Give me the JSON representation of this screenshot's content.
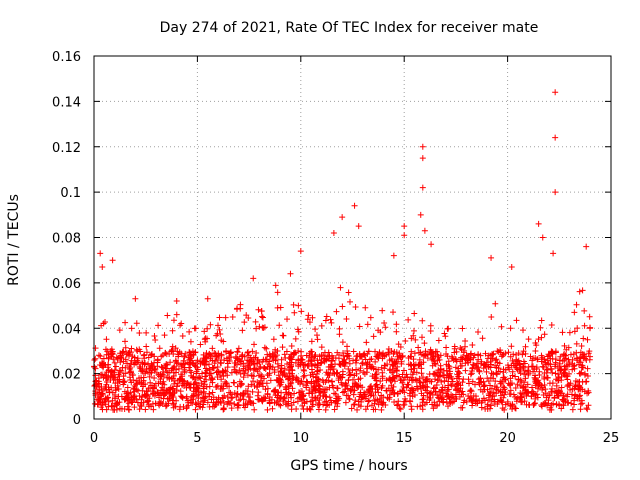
{
  "chart_data": {
    "type": "scatter",
    "title": "Day 274 of 2021, Rate Of TEC Index for receiver mate",
    "xlabel": "GPS time / hours",
    "ylabel": "ROTI / TECUs",
    "xlim": [
      0,
      25
    ],
    "ylim": [
      0,
      0.16
    ],
    "x_ticks": [
      0,
      5,
      10,
      15,
      20,
      25
    ],
    "x_tick_labels": [
      "0",
      "5",
      "10",
      "15",
      "20",
      "25"
    ],
    "y_ticks": [
      0,
      0.02,
      0.04,
      0.06,
      0.08,
      0.1,
      0.12,
      0.14,
      0.16
    ],
    "y_tick_labels": [
      "0",
      "0.02",
      "0.04",
      "0.06",
      "0.08",
      "0.1",
      "0.12",
      "0.14",
      "0.16"
    ],
    "grid": true,
    "marker": "+",
    "color": "#ff0000",
    "series": [
      {
        "name": "ROTI",
        "envelope_hours": [
          0,
          0.5,
          1,
          2,
          3,
          4,
          5,
          6,
          7,
          7.5,
          8,
          9,
          10,
          11,
          11.5,
          12,
          12.5,
          13,
          14,
          15,
          16,
          16.5,
          17,
          18,
          19,
          19.5,
          20,
          21,
          22,
          22.5,
          23,
          23.5,
          24
        ],
        "envelope_upper": [
          0.04,
          0.045,
          0.04,
          0.045,
          0.045,
          0.05,
          0.04,
          0.045,
          0.05,
          0.06,
          0.055,
          0.06,
          0.05,
          0.045,
          0.05,
          0.06,
          0.065,
          0.05,
          0.05,
          0.045,
          0.05,
          0.04,
          0.04,
          0.04,
          0.06,
          0.05,
          0.045,
          0.045,
          0.045,
          0.04,
          0.04,
          0.06,
          0.055
        ],
        "peaks": [
          {
            "x": 0.3,
            "y": 0.073
          },
          {
            "x": 0.4,
            "y": 0.067
          },
          {
            "x": 0.9,
            "y": 0.07
          },
          {
            "x": 2.0,
            "y": 0.053
          },
          {
            "x": 4.0,
            "y": 0.052
          },
          {
            "x": 5.5,
            "y": 0.053
          },
          {
            "x": 7.7,
            "y": 0.062
          },
          {
            "x": 9.5,
            "y": 0.064
          },
          {
            "x": 10.0,
            "y": 0.074
          },
          {
            "x": 11.6,
            "y": 0.082
          },
          {
            "x": 12.0,
            "y": 0.089
          },
          {
            "x": 12.6,
            "y": 0.094
          },
          {
            "x": 12.8,
            "y": 0.085
          },
          {
            "x": 14.5,
            "y": 0.072
          },
          {
            "x": 15.0,
            "y": 0.085
          },
          {
            "x": 15.0,
            "y": 0.081
          },
          {
            "x": 15.9,
            "y": 0.12
          },
          {
            "x": 15.9,
            "y": 0.115
          },
          {
            "x": 15.9,
            "y": 0.102
          },
          {
            "x": 15.8,
            "y": 0.09
          },
          {
            "x": 16.0,
            "y": 0.083
          },
          {
            "x": 16.3,
            "y": 0.077
          },
          {
            "x": 19.2,
            "y": 0.071
          },
          {
            "x": 20.2,
            "y": 0.067
          },
          {
            "x": 21.5,
            "y": 0.086
          },
          {
            "x": 21.7,
            "y": 0.08
          },
          {
            "x": 22.3,
            "y": 0.144
          },
          {
            "x": 22.3,
            "y": 0.124
          },
          {
            "x": 22.3,
            "y": 0.1
          },
          {
            "x": 22.2,
            "y": 0.073
          },
          {
            "x": 23.8,
            "y": 0.076
          }
        ]
      }
    ]
  }
}
